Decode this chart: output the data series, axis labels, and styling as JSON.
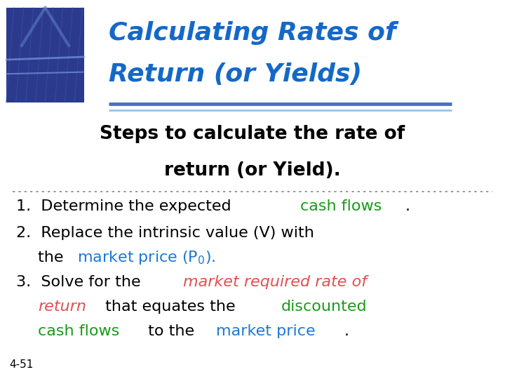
{
  "title_line1": "Calculating Rates of",
  "title_line2": "Return (or Yields)",
  "title_color": "#1469C7",
  "subtitle_line1": "Steps to calculate the rate of",
  "subtitle_line2": "return (or Yield).",
  "subtitle_color": "#000000",
  "background_color": "#ffffff",
  "header_line_color1": "#4472C4",
  "header_line_color2": "#9DC3E6",
  "dotted_line_color": "#888888",
  "slide_number": "4-51",
  "green": "#1A9A1A",
  "blue": "#1E78D4",
  "red": "#E05050",
  "black": "#000000"
}
